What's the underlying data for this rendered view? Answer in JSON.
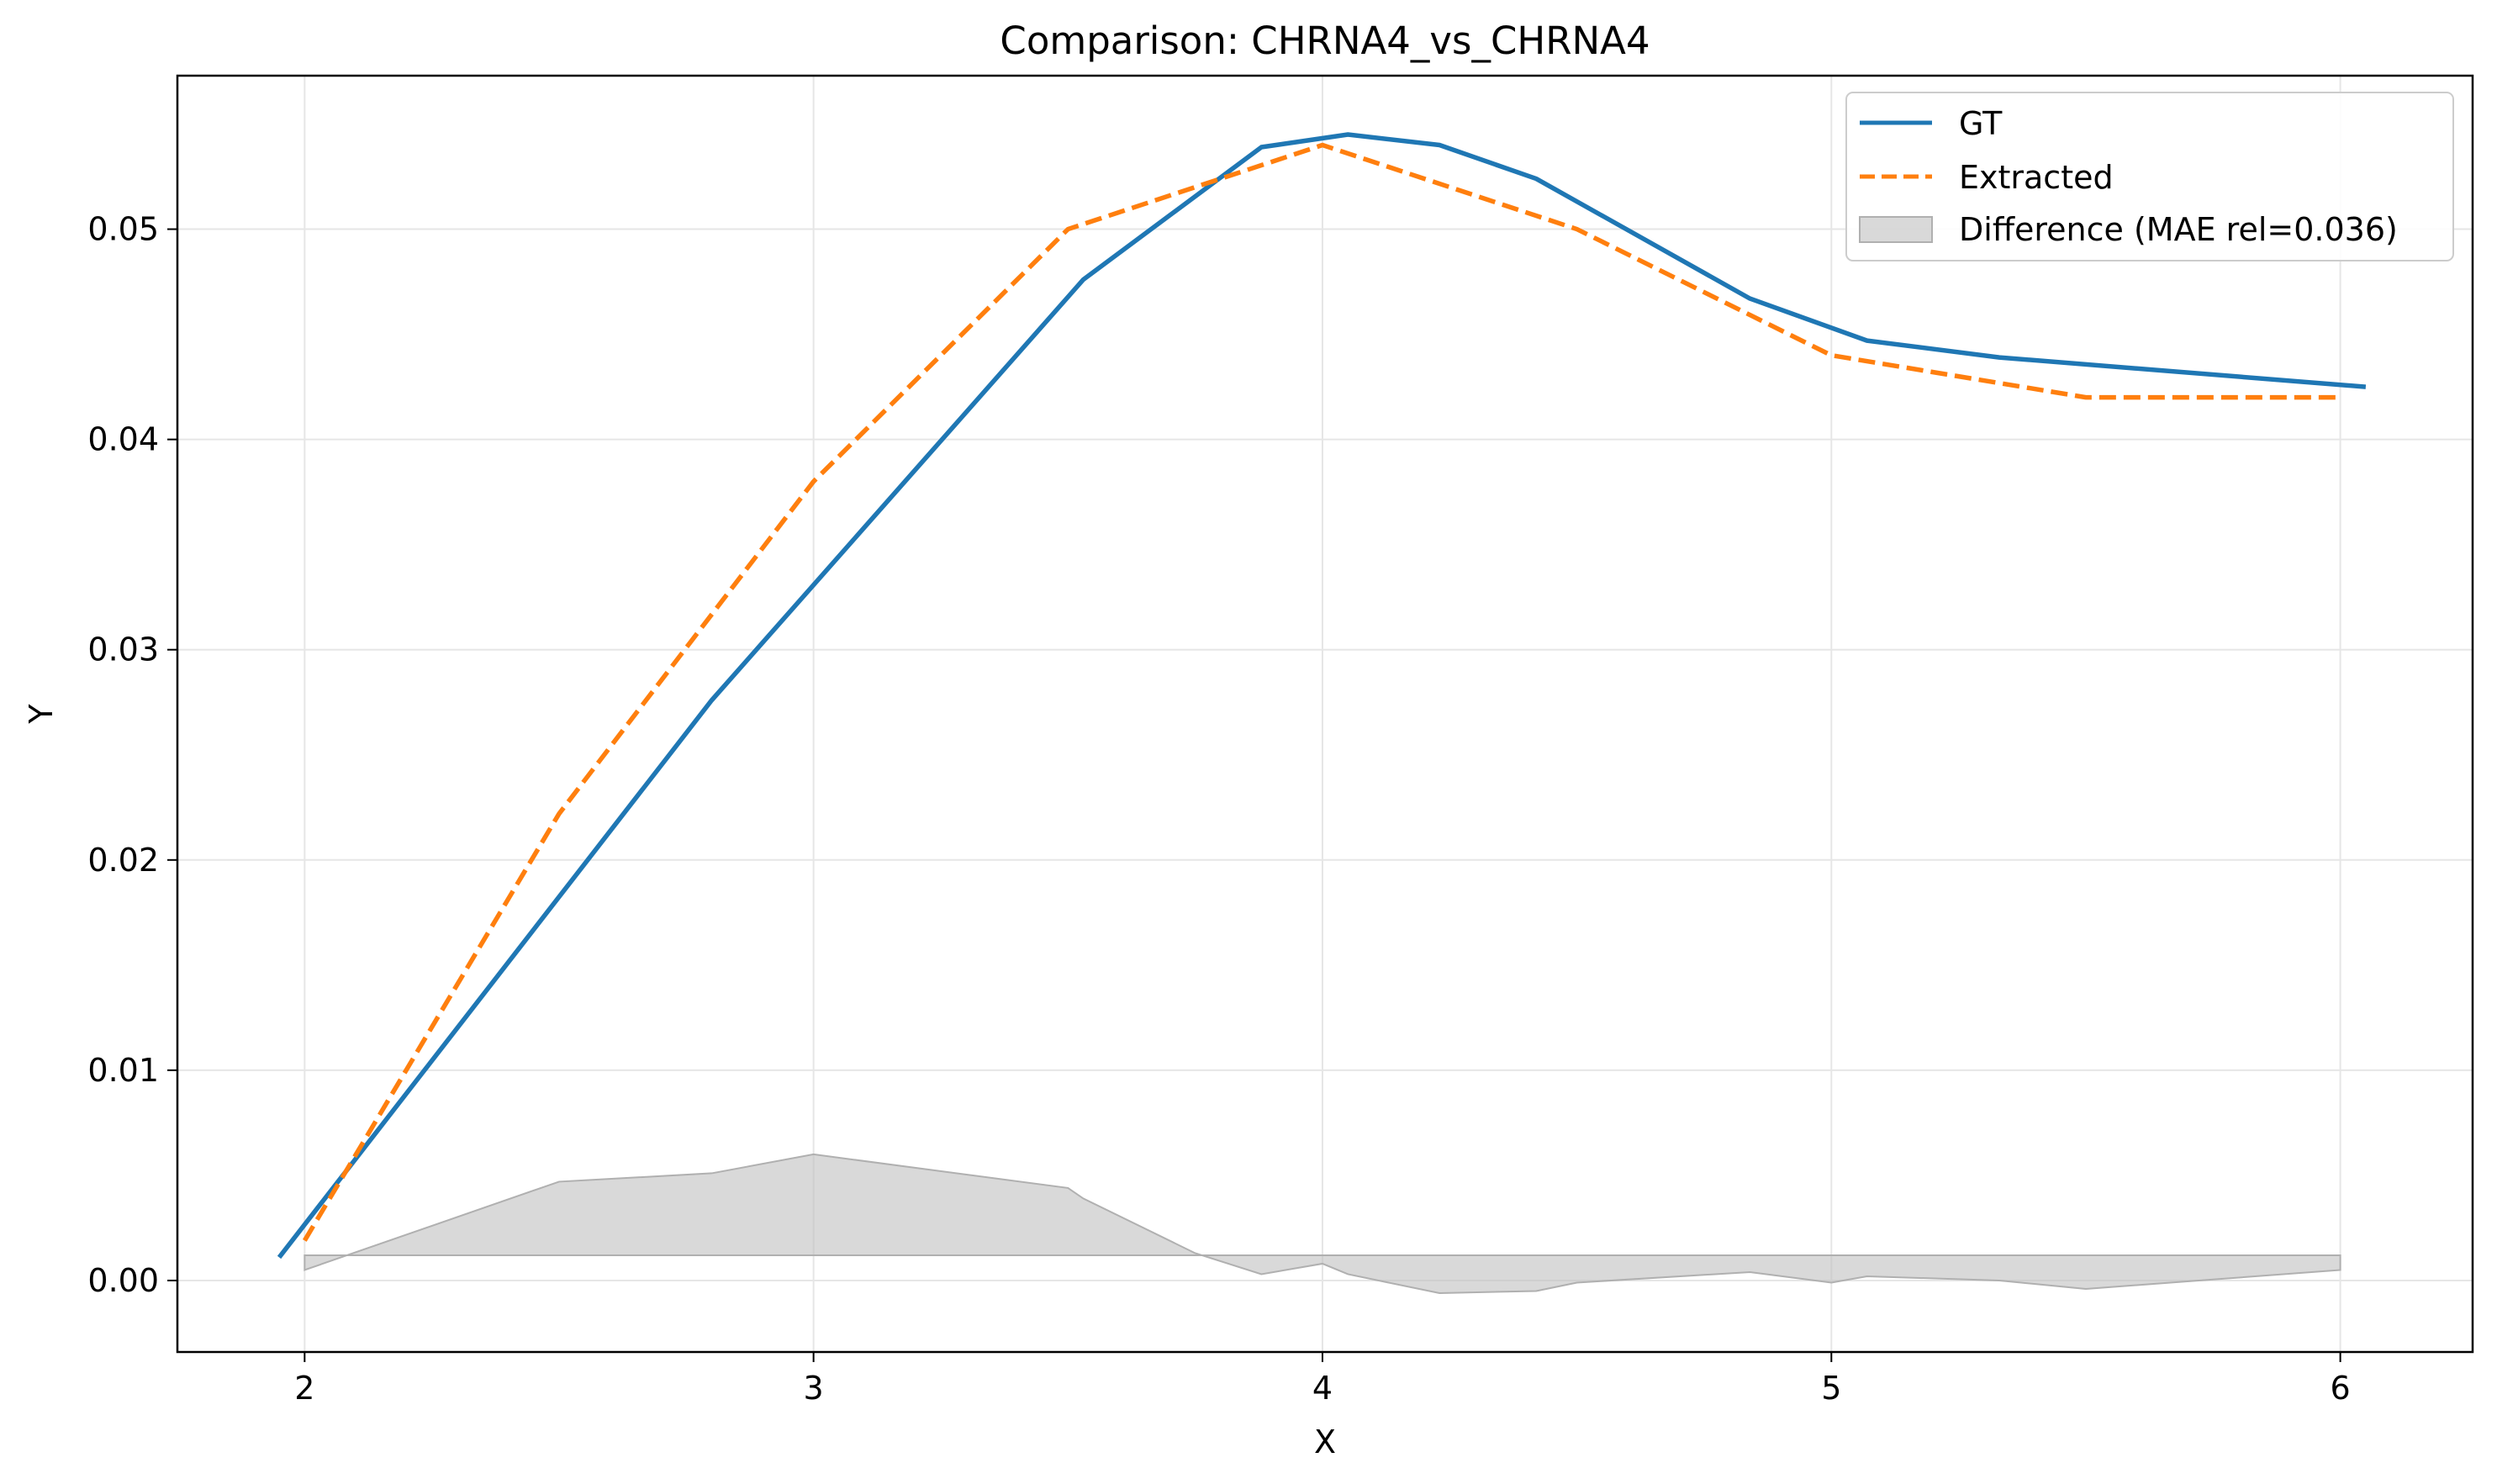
{
  "chart_data": {
    "type": "line",
    "title": "Comparison: CHRNA4_vs_CHRNA4",
    "xlabel": "X",
    "ylabel": "Y",
    "xlim": [
      1.75,
      6.26
    ],
    "ylim": [
      -0.0034,
      0.0573
    ],
    "x_ticks": [
      2,
      3,
      4,
      5,
      6
    ],
    "x_tick_labels": [
      "2",
      "3",
      "4",
      "5",
      "6"
    ],
    "y_ticks": [
      0.0,
      0.01,
      0.02,
      0.03,
      0.04,
      0.05
    ],
    "y_tick_labels": [
      "0.00",
      "0.01",
      "0.02",
      "0.03",
      "0.04",
      "0.05"
    ],
    "grid": true,
    "legend_position": "top-right",
    "series": [
      {
        "name": "GT",
        "color": "#1f77b4",
        "style": "solid",
        "x": [
          1.95,
          2.8,
          3.53,
          3.88,
          4.05,
          4.23,
          4.42,
          4.84,
          5.07,
          5.33,
          6.05
        ],
        "y": [
          0.0011,
          0.0276,
          0.0476,
          0.0539,
          0.0545,
          0.054,
          0.0524,
          0.0467,
          0.0447,
          0.0439,
          0.0425
        ]
      },
      {
        "name": "Extracted",
        "color": "#ff7f0e",
        "style": "dashed",
        "x": [
          2.0,
          2.5,
          3.0,
          3.5,
          4.0,
          4.5,
          5.0,
          5.5,
          6.0
        ],
        "y": [
          0.0019,
          0.0222,
          0.038,
          0.05,
          0.054,
          0.05,
          0.044,
          0.042,
          0.042
        ]
      }
    ],
    "difference": {
      "name": "Difference (MAE rel=0.036)",
      "color": "#c0c0c0",
      "baseline": 0.0012,
      "x": [
        2.0,
        2.5,
        2.8,
        3.0,
        3.5,
        3.53,
        3.75,
        3.88,
        4.0,
        4.05,
        4.23,
        4.42,
        4.5,
        4.84,
        5.0,
        5.07,
        5.33,
        5.5,
        6.0
      ],
      "y": [
        0.0005,
        0.0047,
        0.0051,
        0.006,
        0.0044,
        0.0039,
        0.0013,
        0.0003,
        0.0008,
        0.0003,
        -0.0006,
        -0.0005,
        -0.0001,
        0.0004,
        -0.0001,
        0.0002,
        0.0,
        -0.0004,
        0.0005
      ]
    }
  }
}
